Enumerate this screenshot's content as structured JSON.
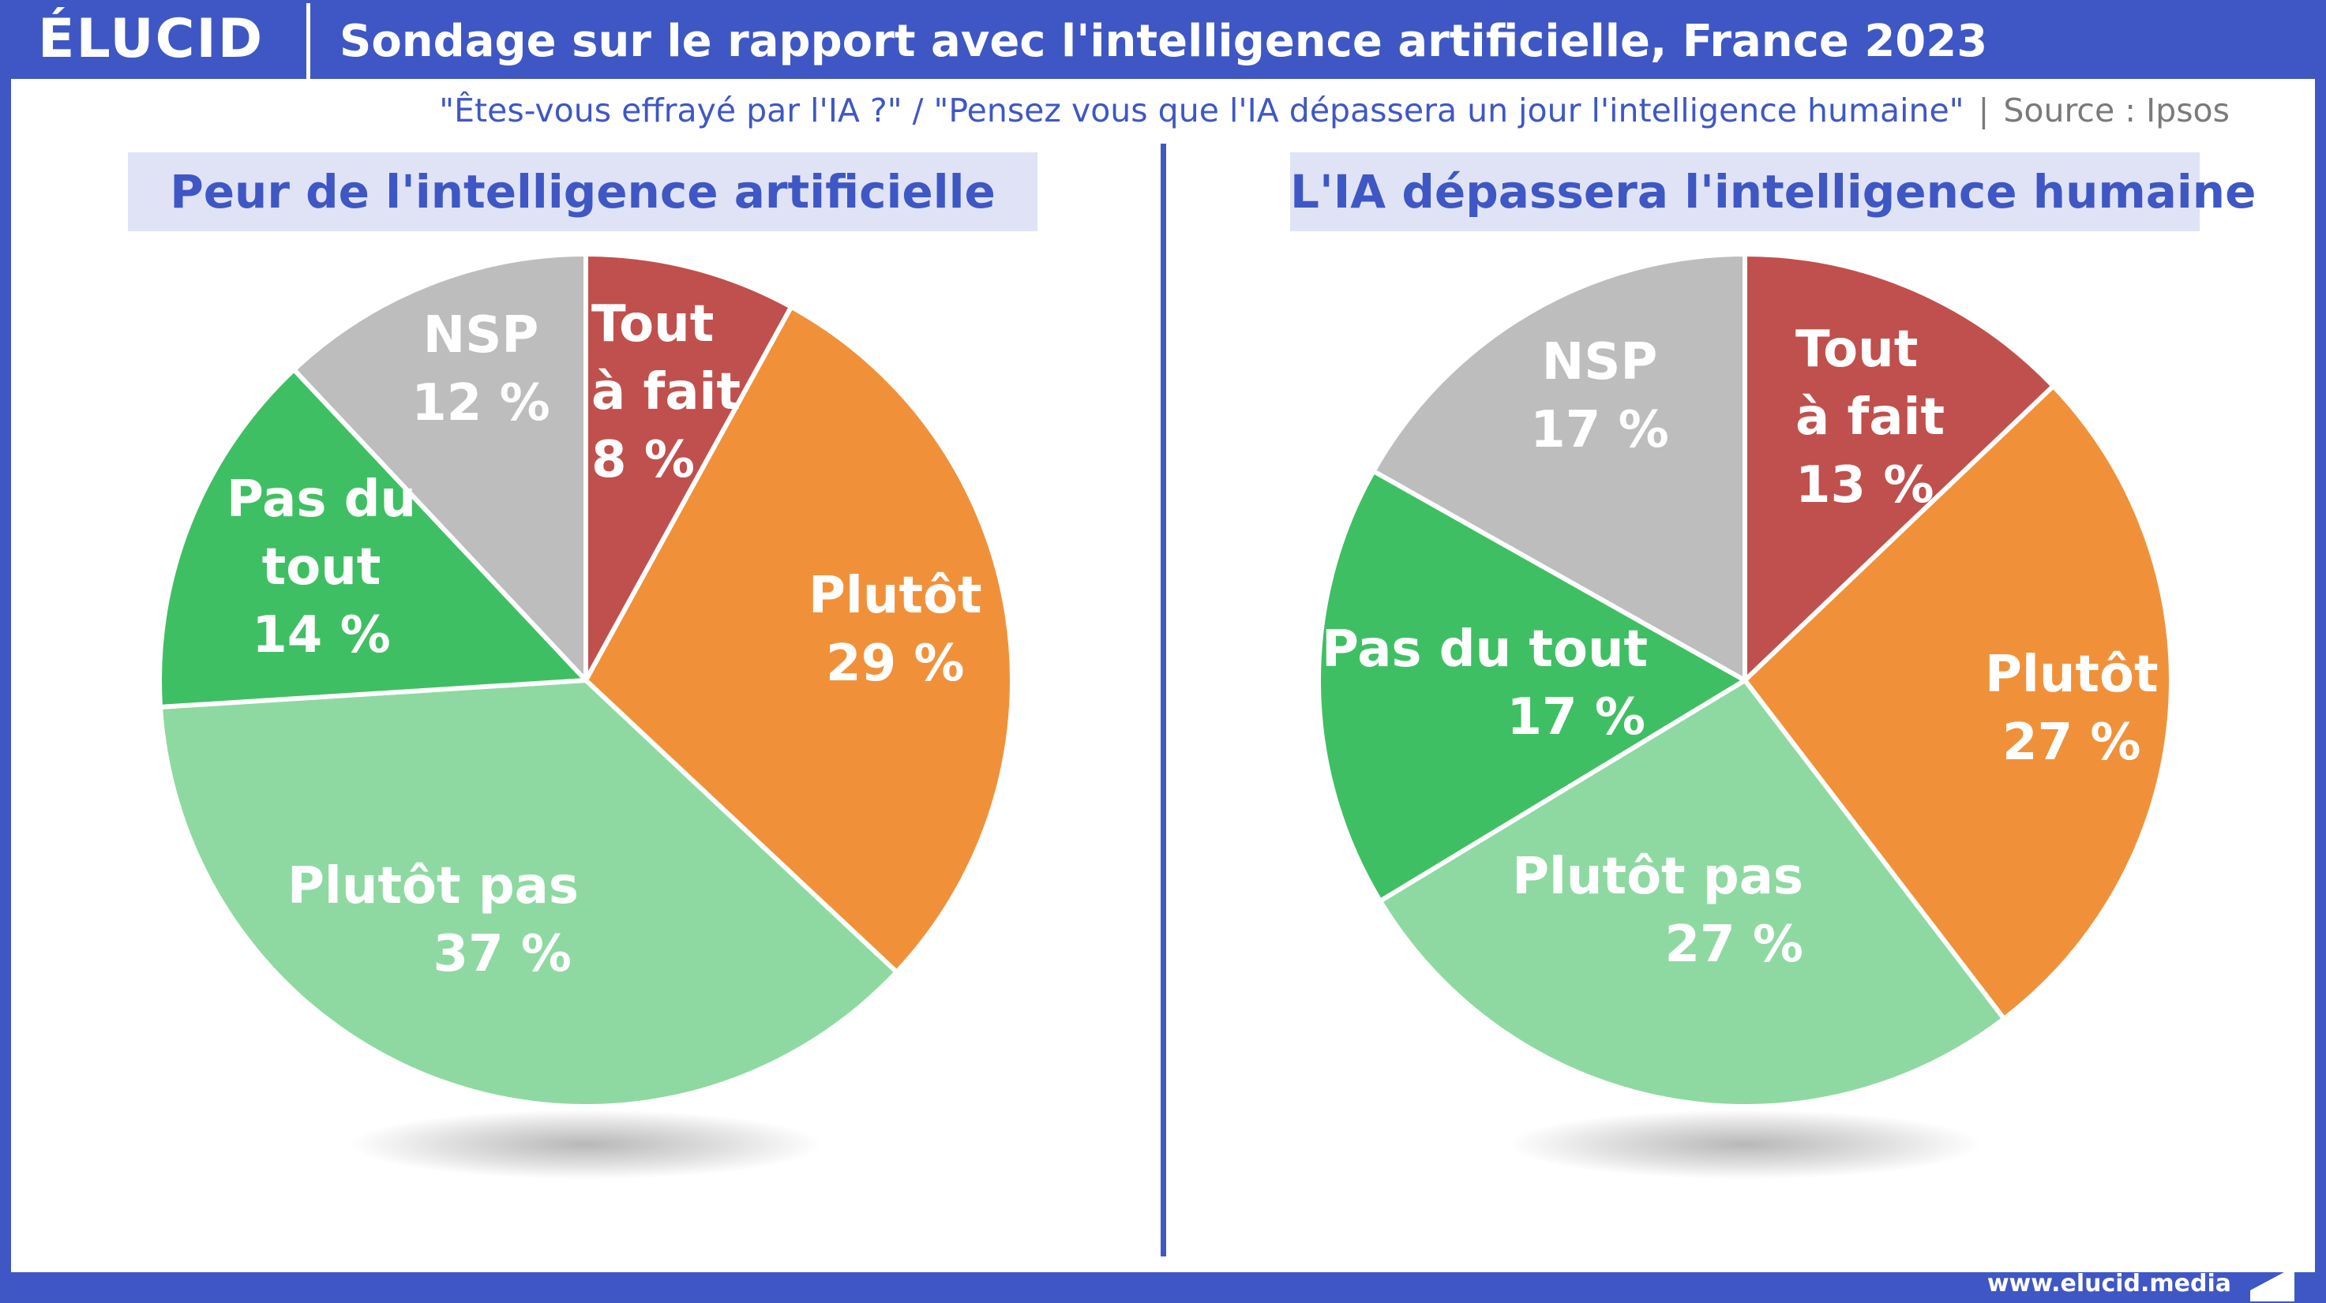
{
  "header": {
    "logo": "ÉLUCID",
    "title": "Sondage sur le rapport avec l'intelligence artificielle, France 2023"
  },
  "subtitle": {
    "questions": "\"Êtes-vous effrayé par l'IA ?\" / \"Pensez vous que l'IA dépassera un jour l'intelligence humaine\"",
    "separator": "|",
    "source": "Source : Ipsos"
  },
  "footer": {
    "url": "www.elucid.media"
  },
  "colors": {
    "brand": "#3f57c4",
    "tout_a_fait": "#c0504d",
    "plutot": "#f0913a",
    "plutot_pas": "#8ed9a2",
    "pas_du_tout": "#3fbf63",
    "nsp": "#bdbdbd"
  },
  "chart_data": [
    {
      "type": "pie",
      "title": "Peur de l'intelligence artificielle",
      "start_angle_deg": 0,
      "direction": "clockwise",
      "slices": [
        {
          "name": "Tout à fait",
          "value": 8,
          "label_lines": [
            "Tout",
            "à fait",
            "8 %"
          ],
          "color": "#c0504d"
        },
        {
          "name": "Plutôt",
          "value": 29,
          "label_lines": [
            "Plutôt",
            "29 %"
          ],
          "color": "#f0913a"
        },
        {
          "name": "Plutôt pas",
          "value": 37,
          "label_lines": [
            "Plutôt pas",
            "37 %"
          ],
          "color": "#8ed9a2"
        },
        {
          "name": "Pas du tout",
          "value": 14,
          "label_lines": [
            "Pas du",
            "tout",
            "14 %"
          ],
          "color": "#3fbf63"
        },
        {
          "name": "NSP",
          "value": 12,
          "label_lines": [
            "NSP",
            "12 %"
          ],
          "color": "#bdbdbd"
        }
      ]
    },
    {
      "type": "pie",
      "title": "L'IA dépassera l'intelligence humaine",
      "start_angle_deg": 0,
      "direction": "clockwise",
      "slices": [
        {
          "name": "Tout à fait",
          "value": 13,
          "label_lines": [
            "Tout",
            "à fait",
            "13 %"
          ],
          "color": "#c0504d"
        },
        {
          "name": "Plutôt",
          "value": 27,
          "label_lines": [
            "Plutôt",
            "27 %"
          ],
          "color": "#f0913a"
        },
        {
          "name": "Plutôt pas",
          "value": 27,
          "label_lines": [
            "Plutôt pas",
            "27 %"
          ],
          "color": "#8ed9a2"
        },
        {
          "name": "Pas du tout",
          "value": 17,
          "label_lines": [
            "Pas du tout",
            "17 %"
          ],
          "color": "#3fbf63"
        },
        {
          "name": "NSP",
          "value": 17,
          "label_lines": [
            "NSP",
            "17 %"
          ],
          "color": "#bdbdbd"
        }
      ]
    }
  ]
}
